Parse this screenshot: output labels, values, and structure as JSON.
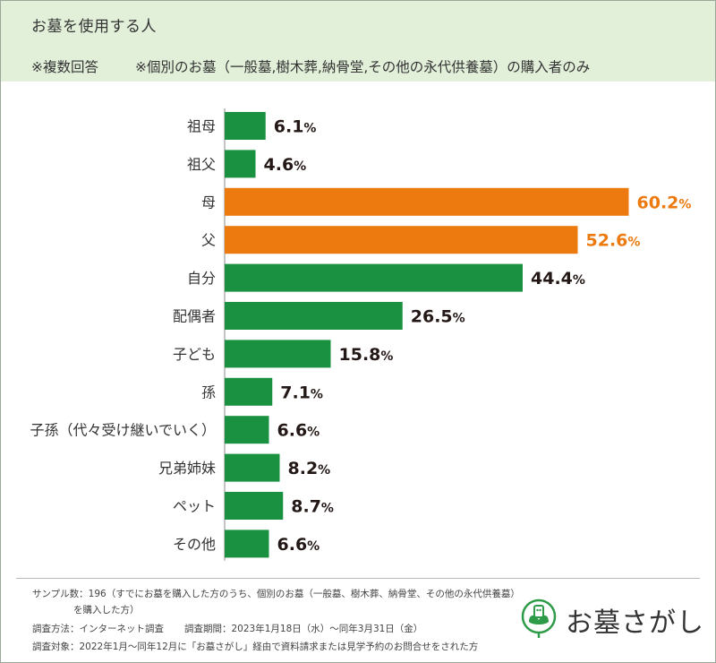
{
  "header": {
    "title": "お墓を使用する人",
    "note_multiple": "※複数回答",
    "note_scope": "※個別のお墓（一般墓,樹木葬,納骨堂,その他の永代供養墓）の購入者のみ"
  },
  "colors": {
    "green": "#1a9140",
    "orange": "#ec7a0e",
    "header_bg": "#e2efd9",
    "text": "#231815"
  },
  "chart_data": {
    "type": "bar",
    "orientation": "horizontal",
    "title": "お墓を使用する人",
    "unit": "%",
    "categories": [
      "祖母",
      "祖父",
      "母",
      "父",
      "自分",
      "配偶者",
      "子ども",
      "孫",
      "子孫（代々受け継いでいく）",
      "兄弟姉妹",
      "ペット",
      "その他"
    ],
    "values": [
      6.1,
      4.6,
      60.2,
      52.6,
      44.4,
      26.5,
      15.8,
      7.1,
      6.6,
      8.2,
      8.7,
      6.6
    ],
    "highlight": [
      false,
      false,
      true,
      true,
      false,
      false,
      false,
      false,
      false,
      false,
      false,
      false
    ],
    "xlim": [
      0,
      65
    ]
  },
  "footer": {
    "sample": "サンプル数：196（すでにお墓を購入した方のうち、個別のお墓（一般墓、樹木葬、納骨堂、その他の永代供養墓）",
    "sample_cont": "を購入した方）",
    "method": "調査方法：インターネット調査",
    "period": "調査期間：2023年1月18日（水）～同年3月31日（金）",
    "target": "調査対象：2022年1月～同年12月に「お墓さがし」経由で資料請求または見学予約のお問合せをされた方"
  },
  "logo": {
    "icon": "leaf-grave-icon",
    "text": "お墓さがし"
  }
}
